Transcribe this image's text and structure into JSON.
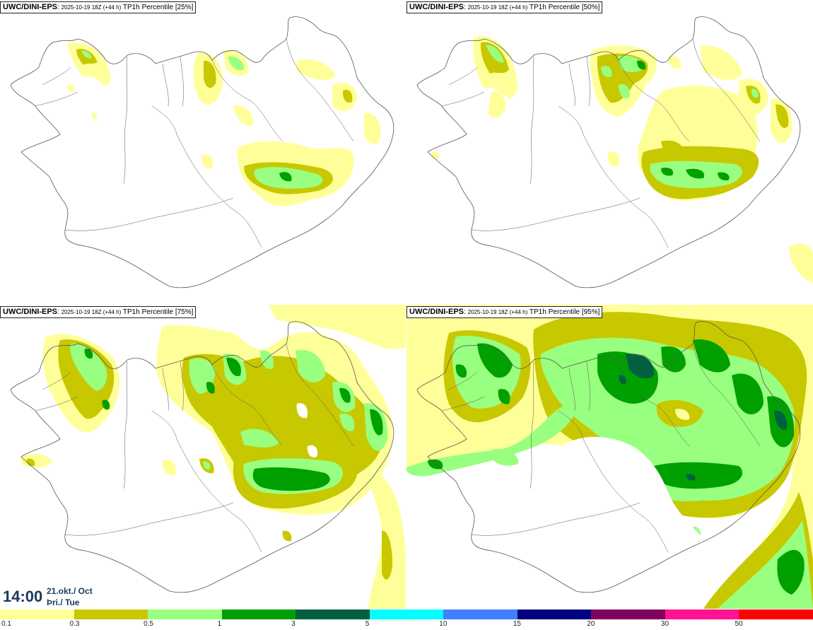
{
  "panels": [
    {
      "model": "UWC/DINI-EPS",
      "run": "2025-10-19 18Z (+44 h)",
      "variable": "TP1h Percentile [25%]",
      "percentile": 25
    },
    {
      "model": "UWC/DINI-EPS",
      "run": "2025-10-19 18Z (+44 h)",
      "variable": "TP1h Percentile [50%]",
      "percentile": 50
    },
    {
      "model": "UWC/DINI-EPS",
      "run": "2025-10-19 18Z (+44 h)",
      "variable": "TP1h Percentile [75%]",
      "percentile": 75
    },
    {
      "model": "UWC/DINI-EPS",
      "run": "2025-10-19 18Z (+44 h)",
      "variable": "TP1h Percentile [95%]",
      "percentile": 95
    }
  ],
  "valid_time": {
    "time": "14:00",
    "date": "21.okt./ Oct",
    "weekday": "Þri./ Tue"
  },
  "colorbar": {
    "labels": [
      "0.1",
      "0.3",
      "0.5",
      "1",
      "3",
      "5",
      "10",
      "15",
      "20",
      "30",
      "50"
    ],
    "colors": [
      "#ffff99",
      "#c8c800",
      "#99ff80",
      "#00a000",
      "#006040",
      "#00ffff",
      "#4080ff",
      "#000080",
      "#800060",
      "#ff1493",
      "#ff0000"
    ]
  },
  "map_colors": {
    "outline": "#555555",
    "light_yellow": "#ffff99",
    "olive": "#c8c800",
    "light_green": "#99ff80",
    "green": "#00a000",
    "dark_green": "#006040"
  }
}
